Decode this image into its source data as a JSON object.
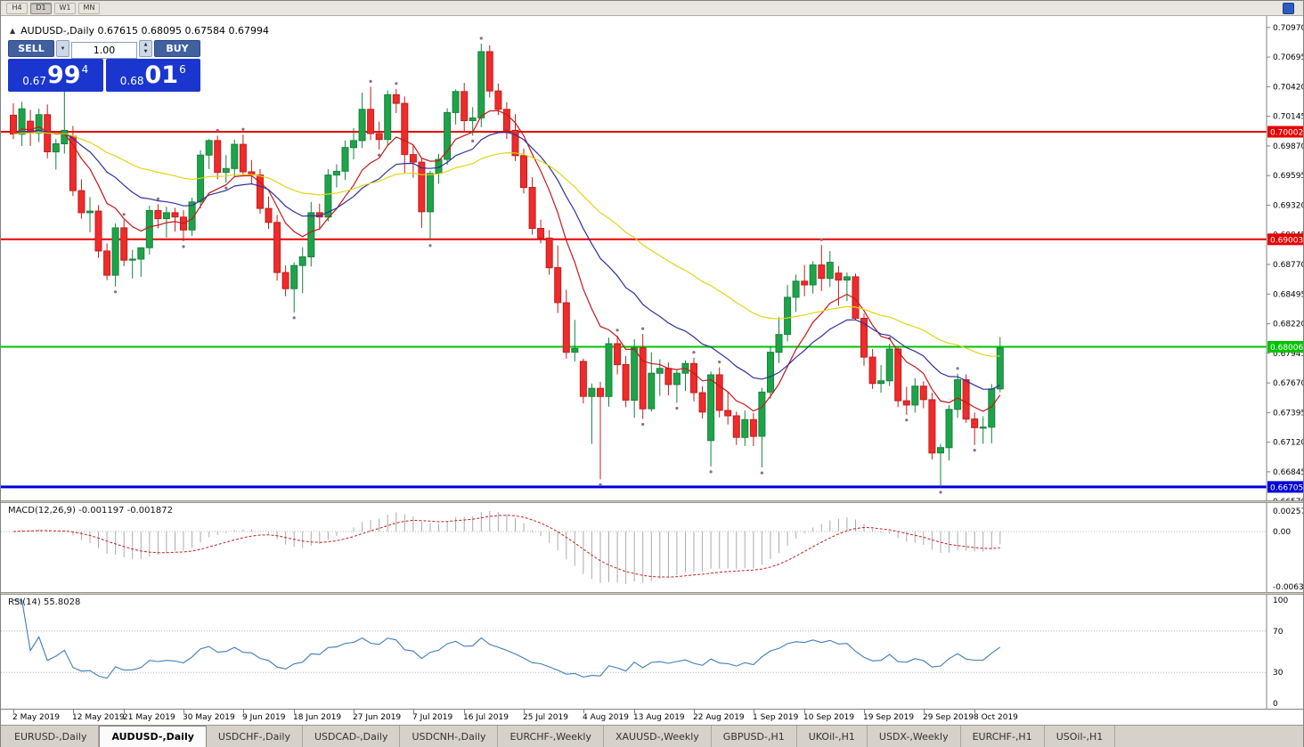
{
  "title": "AUDUSD-,Daily 0.67615 0.68095 0.67584 0.67994",
  "toolbar": {
    "timeframes": [
      {
        "label": "H4",
        "active": false
      },
      {
        "label": "D1",
        "active": true
      },
      {
        "label": "W1",
        "active": false
      },
      {
        "label": "MN",
        "active": false
      }
    ]
  },
  "one_click": {
    "sell": "SELL",
    "buy": "BUY",
    "volume": "1.00",
    "sell_price": {
      "base": "0.67",
      "big": "99",
      "sup": "4"
    },
    "buy_price": {
      "base": "0.68",
      "big": "01",
      "sup": "6"
    }
  },
  "tabs": [
    {
      "label": "EURUSD-,Daily",
      "active": false
    },
    {
      "label": "AUDUSD-,Daily",
      "active": true
    },
    {
      "label": "USDCHF-,Daily",
      "active": false
    },
    {
      "label": "USDCAD-,Daily",
      "active": false
    },
    {
      "label": "USDCNH-,Daily",
      "active": false
    },
    {
      "label": "EURCHF-,Weekly",
      "active": false
    },
    {
      "label": "XAUUSD-,Weekly",
      "active": false
    },
    {
      "label": "GBPUSD-,H1",
      "active": false
    },
    {
      "label": "UKOil-,H1",
      "active": false
    },
    {
      "label": "USDX-,Weekly",
      "active": false
    },
    {
      "label": "EURCHF-,H1",
      "active": false
    },
    {
      "label": "USOil-,H1",
      "active": false
    }
  ],
  "chart_data": {
    "type": "candlestick",
    "symbol": "AUDUSD-",
    "period": "Daily",
    "last_bar": {
      "open": 0.67615,
      "high": 0.68095,
      "low": 0.67584,
      "close": 0.67994
    },
    "price_range": {
      "top": 0.71076,
      "bottom": 0.6658
    },
    "y_axis_labels": [
      "0.70970",
      "0.70695",
      "0.70420",
      "0.70145",
      "0.69870",
      "0.69595",
      "0.69320",
      "0.69045",
      "0.68770",
      "0.68495",
      "0.68220",
      "0.67945",
      "0.67670",
      "0.67395",
      "0.67120",
      "0.66845",
      "0.66570"
    ],
    "x_labels": [
      {
        "text": "2 May 2019",
        "bar": 0
      },
      {
        "text": "12 May 2019",
        "bar": 7
      },
      {
        "text": "21 May 2019",
        "bar": 13
      },
      {
        "text": "30 May 2019",
        "bar": 20
      },
      {
        "text": "9 Jun 2019",
        "bar": 27
      },
      {
        "text": "18 Jun 2019",
        "bar": 33
      },
      {
        "text": "27 Jun 2019",
        "bar": 40
      },
      {
        "text": "7 Jul 2019",
        "bar": 47
      },
      {
        "text": "16 Jul 2019",
        "bar": 53
      },
      {
        "text": "25 Jul 2019",
        "bar": 60
      },
      {
        "text": "4 Aug 2019",
        "bar": 67
      },
      {
        "text": "13 Aug 2019",
        "bar": 73
      },
      {
        "text": "22 Aug 2019",
        "bar": 80
      },
      {
        "text": "1 Sep 2019",
        "bar": 87
      },
      {
        "text": "10 Sep 2019",
        "bar": 93
      },
      {
        "text": "19 Sep 2019",
        "bar": 100
      },
      {
        "text": "29 Sep 2019",
        "bar": 107
      },
      {
        "text": "8 Oct 2019",
        "bar": 113
      }
    ],
    "hlines": [
      {
        "price": 0.70002,
        "label": "0.70002",
        "color": "#e80000",
        "width": 2
      },
      {
        "price": 0.69003,
        "label": "0.69003",
        "color": "#e80000",
        "width": 2
      },
      {
        "price": 0.68006,
        "label": "0.68006",
        "color": "#00c300",
        "width": 2
      },
      {
        "price": 0.66705,
        "label": "0.66705",
        "color": "#0000d8",
        "width": 3
      }
    ],
    "moving_averages": [
      {
        "period": 9,
        "color": "#c41818"
      },
      {
        "period": 20,
        "color": "#30309b"
      },
      {
        "period": 45,
        "color": "#e2d414"
      }
    ],
    "colors": {
      "up": "#1fa34a",
      "up_border": "#13843a",
      "down": "#ef2b2b",
      "down_border": "#c11d1d",
      "histogram": "#ababab",
      "signal": "#c42020",
      "rsi_line": "#3f7cba"
    },
    "macd": {
      "text": "MACD(12,26,9) -0.001197 -0.001872",
      "fast": 12,
      "slow": 26,
      "signal": 9,
      "main_value": -0.001197,
      "signal_value": -0.001872,
      "axis": [
        "0.002574",
        "0.00",
        "-0.006326"
      ]
    },
    "rsi": {
      "text": "RSI(14) 55.8028",
      "period": 14,
      "value": 55.8028,
      "axis": [
        "100",
        "70",
        "30",
        "0"
      ],
      "levels": [
        70,
        30
      ]
    },
    "candles": [
      [
        0.70155,
        0.70265,
        0.69935,
        0.6998
      ],
      [
        0.6998,
        0.7028,
        0.6987,
        0.70215
      ],
      [
        0.701,
        0.70205,
        0.6987,
        0.6999
      ],
      [
        0.6999,
        0.70215,
        0.69905,
        0.7016
      ],
      [
        0.7016,
        0.70255,
        0.69755,
        0.69815
      ],
      [
        0.69815,
        0.69935,
        0.6965,
        0.6989
      ],
      [
        0.6989,
        0.70475,
        0.698,
        0.70015
      ],
      [
        0.6996,
        0.70055,
        0.69405,
        0.69455
      ],
      [
        0.69455,
        0.6956,
        0.69195,
        0.6925
      ],
      [
        0.6925,
        0.69395,
        0.6907,
        0.69265
      ],
      [
        0.69265,
        0.6932,
        0.6883,
        0.68895
      ],
      [
        0.68895,
        0.68965,
        0.68625,
        0.6867
      ],
      [
        0.6867,
        0.6915,
        0.68565,
        0.6911
      ],
      [
        0.6911,
        0.69185,
        0.68755,
        0.6881
      ],
      [
        0.6881,
        0.68905,
        0.6864,
        0.6882
      ],
      [
        0.6882,
        0.6893,
        0.68655,
        0.68925
      ],
      [
        0.68925,
        0.69315,
        0.6886,
        0.6927
      ],
      [
        0.6927,
        0.6933,
        0.69105,
        0.69195
      ],
      [
        0.69195,
        0.69305,
        0.6902,
        0.6925
      ],
      [
        0.6925,
        0.69295,
        0.69075,
        0.6921
      ],
      [
        0.6921,
        0.69275,
        0.68985,
        0.6909
      ],
      [
        0.6909,
        0.6939,
        0.69035,
        0.6935
      ],
      [
        0.6935,
        0.6983,
        0.6929,
        0.69785
      ],
      [
        0.69785,
        0.69935,
        0.69655,
        0.6992
      ],
      [
        0.6992,
        0.69965,
        0.6956,
        0.69625
      ],
      [
        0.69625,
        0.69785,
        0.6953,
        0.6966
      ],
      [
        0.6966,
        0.6993,
        0.6958,
        0.69885
      ],
      [
        0.69885,
        0.69975,
        0.69585,
        0.6963
      ],
      [
        0.6963,
        0.6974,
        0.69515,
        0.696
      ],
      [
        0.696,
        0.69655,
        0.6924,
        0.6929
      ],
      [
        0.6929,
        0.694,
        0.691,
        0.6916
      ],
      [
        0.6916,
        0.6923,
        0.6862,
        0.68695
      ],
      [
        0.68695,
        0.6876,
        0.68475,
        0.68545
      ],
      [
        0.68545,
        0.6879,
        0.68325,
        0.6876
      ],
      [
        0.6876,
        0.6893,
        0.68505,
        0.6884
      ],
      [
        0.6884,
        0.6935,
        0.6875,
        0.6925
      ],
      [
        0.6925,
        0.69335,
        0.6909,
        0.6921
      ],
      [
        0.6921,
        0.69655,
        0.6917,
        0.696
      ],
      [
        0.696,
        0.697,
        0.69485,
        0.69635
      ],
      [
        0.69635,
        0.6992,
        0.69555,
        0.69855
      ],
      [
        0.69855,
        0.70035,
        0.69745,
        0.6992
      ],
      [
        0.6992,
        0.70365,
        0.6985,
        0.7021
      ],
      [
        0.7021,
        0.7042,
        0.69925,
        0.69985
      ],
      [
        0.69985,
        0.70095,
        0.69835,
        0.6993
      ],
      [
        0.6993,
        0.70385,
        0.6987,
        0.70345
      ],
      [
        0.70345,
        0.704,
        0.70175,
        0.70265
      ],
      [
        0.70265,
        0.7033,
        0.6962,
        0.6979
      ],
      [
        0.6979,
        0.6988,
        0.69575,
        0.6972
      ],
      [
        0.6972,
        0.69755,
        0.6911,
        0.6926
      ],
      [
        0.6926,
        0.6964,
        0.68995,
        0.69615
      ],
      [
        0.69615,
        0.69795,
        0.6952,
        0.69745
      ],
      [
        0.69745,
        0.7022,
        0.69695,
        0.7018
      ],
      [
        0.7018,
        0.70395,
        0.7007,
        0.70375
      ],
      [
        0.70375,
        0.70455,
        0.7001,
        0.70105
      ],
      [
        0.70105,
        0.7023,
        0.69965,
        0.7013
      ],
      [
        0.7013,
        0.7082,
        0.70045,
        0.70745
      ],
      [
        0.70745,
        0.70805,
        0.7032,
        0.7038
      ],
      [
        0.7038,
        0.7045,
        0.70155,
        0.7021
      ],
      [
        0.7021,
        0.70275,
        0.69935,
        0.70015
      ],
      [
        0.70015,
        0.70165,
        0.6973,
        0.6978
      ],
      [
        0.6978,
        0.69845,
        0.6943,
        0.69485
      ],
      [
        0.69485,
        0.6958,
        0.69045,
        0.69105
      ],
      [
        0.69105,
        0.69185,
        0.68965,
        0.69015
      ],
      [
        0.69015,
        0.6909,
        0.68675,
        0.6874
      ],
      [
        0.6874,
        0.68945,
        0.6832,
        0.68415
      ],
      [
        0.68415,
        0.68535,
        0.67895,
        0.67955
      ],
      [
        0.67955,
        0.68255,
        0.6787,
        0.6799
      ],
      [
        0.6787,
        0.67895,
        0.6748,
        0.67545
      ],
      [
        0.67545,
        0.67665,
        0.67105,
        0.6762
      ],
      [
        0.6762,
        0.6768,
        0.66775,
        0.67545
      ],
      [
        0.67545,
        0.6809,
        0.6745,
        0.68035
      ],
      [
        0.68035,
        0.6811,
        0.6775,
        0.6784
      ],
      [
        0.6784,
        0.6792,
        0.67445,
        0.6751
      ],
      [
        0.6751,
        0.68075,
        0.67345,
        0.67995
      ],
      [
        0.67995,
        0.68125,
        0.67335,
        0.6743
      ],
      [
        0.6743,
        0.67955,
        0.67405,
        0.6776
      ],
      [
        0.6776,
        0.6789,
        0.6755,
        0.67805
      ],
      [
        0.67805,
        0.6786,
        0.67555,
        0.67655
      ],
      [
        0.67655,
        0.6779,
        0.67485,
        0.6776
      ],
      [
        0.6776,
        0.6788,
        0.67595,
        0.6785
      ],
      [
        0.6785,
        0.67905,
        0.675,
        0.6758
      ],
      [
        0.6758,
        0.6764,
        0.6734,
        0.674
      ],
      [
        0.67135,
        0.67775,
        0.66895,
        0.67745
      ],
      [
        0.67745,
        0.67815,
        0.6735,
        0.67415
      ],
      [
        0.67415,
        0.67585,
        0.67285,
        0.67365
      ],
      [
        0.67365,
        0.67405,
        0.67095,
        0.67165
      ],
      [
        0.67165,
        0.67415,
        0.67085,
        0.6733
      ],
      [
        0.6733,
        0.6739,
        0.67085,
        0.67175
      ],
      [
        0.67175,
        0.67625,
        0.66885,
        0.67585
      ],
      [
        0.67585,
        0.6801,
        0.67525,
        0.67955
      ],
      [
        0.67955,
        0.6828,
        0.67855,
        0.6812
      ],
      [
        0.6812,
        0.6858,
        0.68055,
        0.68465
      ],
      [
        0.68465,
        0.68675,
        0.6833,
        0.68615
      ],
      [
        0.68615,
        0.68765,
        0.68475,
        0.6858
      ],
      [
        0.6858,
        0.688,
        0.685,
        0.68765
      ],
      [
        0.68765,
        0.6895,
        0.68525,
        0.6864
      ],
      [
        0.6864,
        0.68895,
        0.6856,
        0.6879
      ],
      [
        0.6869,
        0.68755,
        0.68385,
        0.68625
      ],
      [
        0.68625,
        0.68695,
        0.6843,
        0.68655
      ],
      [
        0.68655,
        0.68685,
        0.6825,
        0.6827
      ],
      [
        0.6827,
        0.68315,
        0.6783,
        0.6791
      ],
      [
        0.6791,
        0.67985,
        0.67615,
        0.67665
      ],
      [
        0.67665,
        0.67835,
        0.6758,
        0.6769
      ],
      [
        0.6769,
        0.68035,
        0.6764,
        0.67985
      ],
      [
        0.67985,
        0.68005,
        0.67445,
        0.67505
      ],
      [
        0.67505,
        0.67635,
        0.67375,
        0.67465
      ],
      [
        0.67465,
        0.67715,
        0.67395,
        0.6764
      ],
      [
        0.6764,
        0.67685,
        0.67435,
        0.67515
      ],
      [
        0.67515,
        0.6758,
        0.6696,
        0.6702
      ],
      [
        0.6702,
        0.67105,
        0.66705,
        0.6707
      ],
      [
        0.6707,
        0.67465,
        0.6695,
        0.67425
      ],
      [
        0.67425,
        0.67755,
        0.67345,
        0.677
      ],
      [
        0.677,
        0.6775,
        0.673,
        0.67335
      ],
      [
        0.67335,
        0.67395,
        0.67095,
        0.67255
      ],
      [
        0.67255,
        0.6736,
        0.67105,
        0.6726
      ],
      [
        0.6726,
        0.6766,
        0.6711,
        0.67615
      ],
      [
        0.67615,
        0.68095,
        0.67584,
        0.67994
      ]
    ]
  }
}
